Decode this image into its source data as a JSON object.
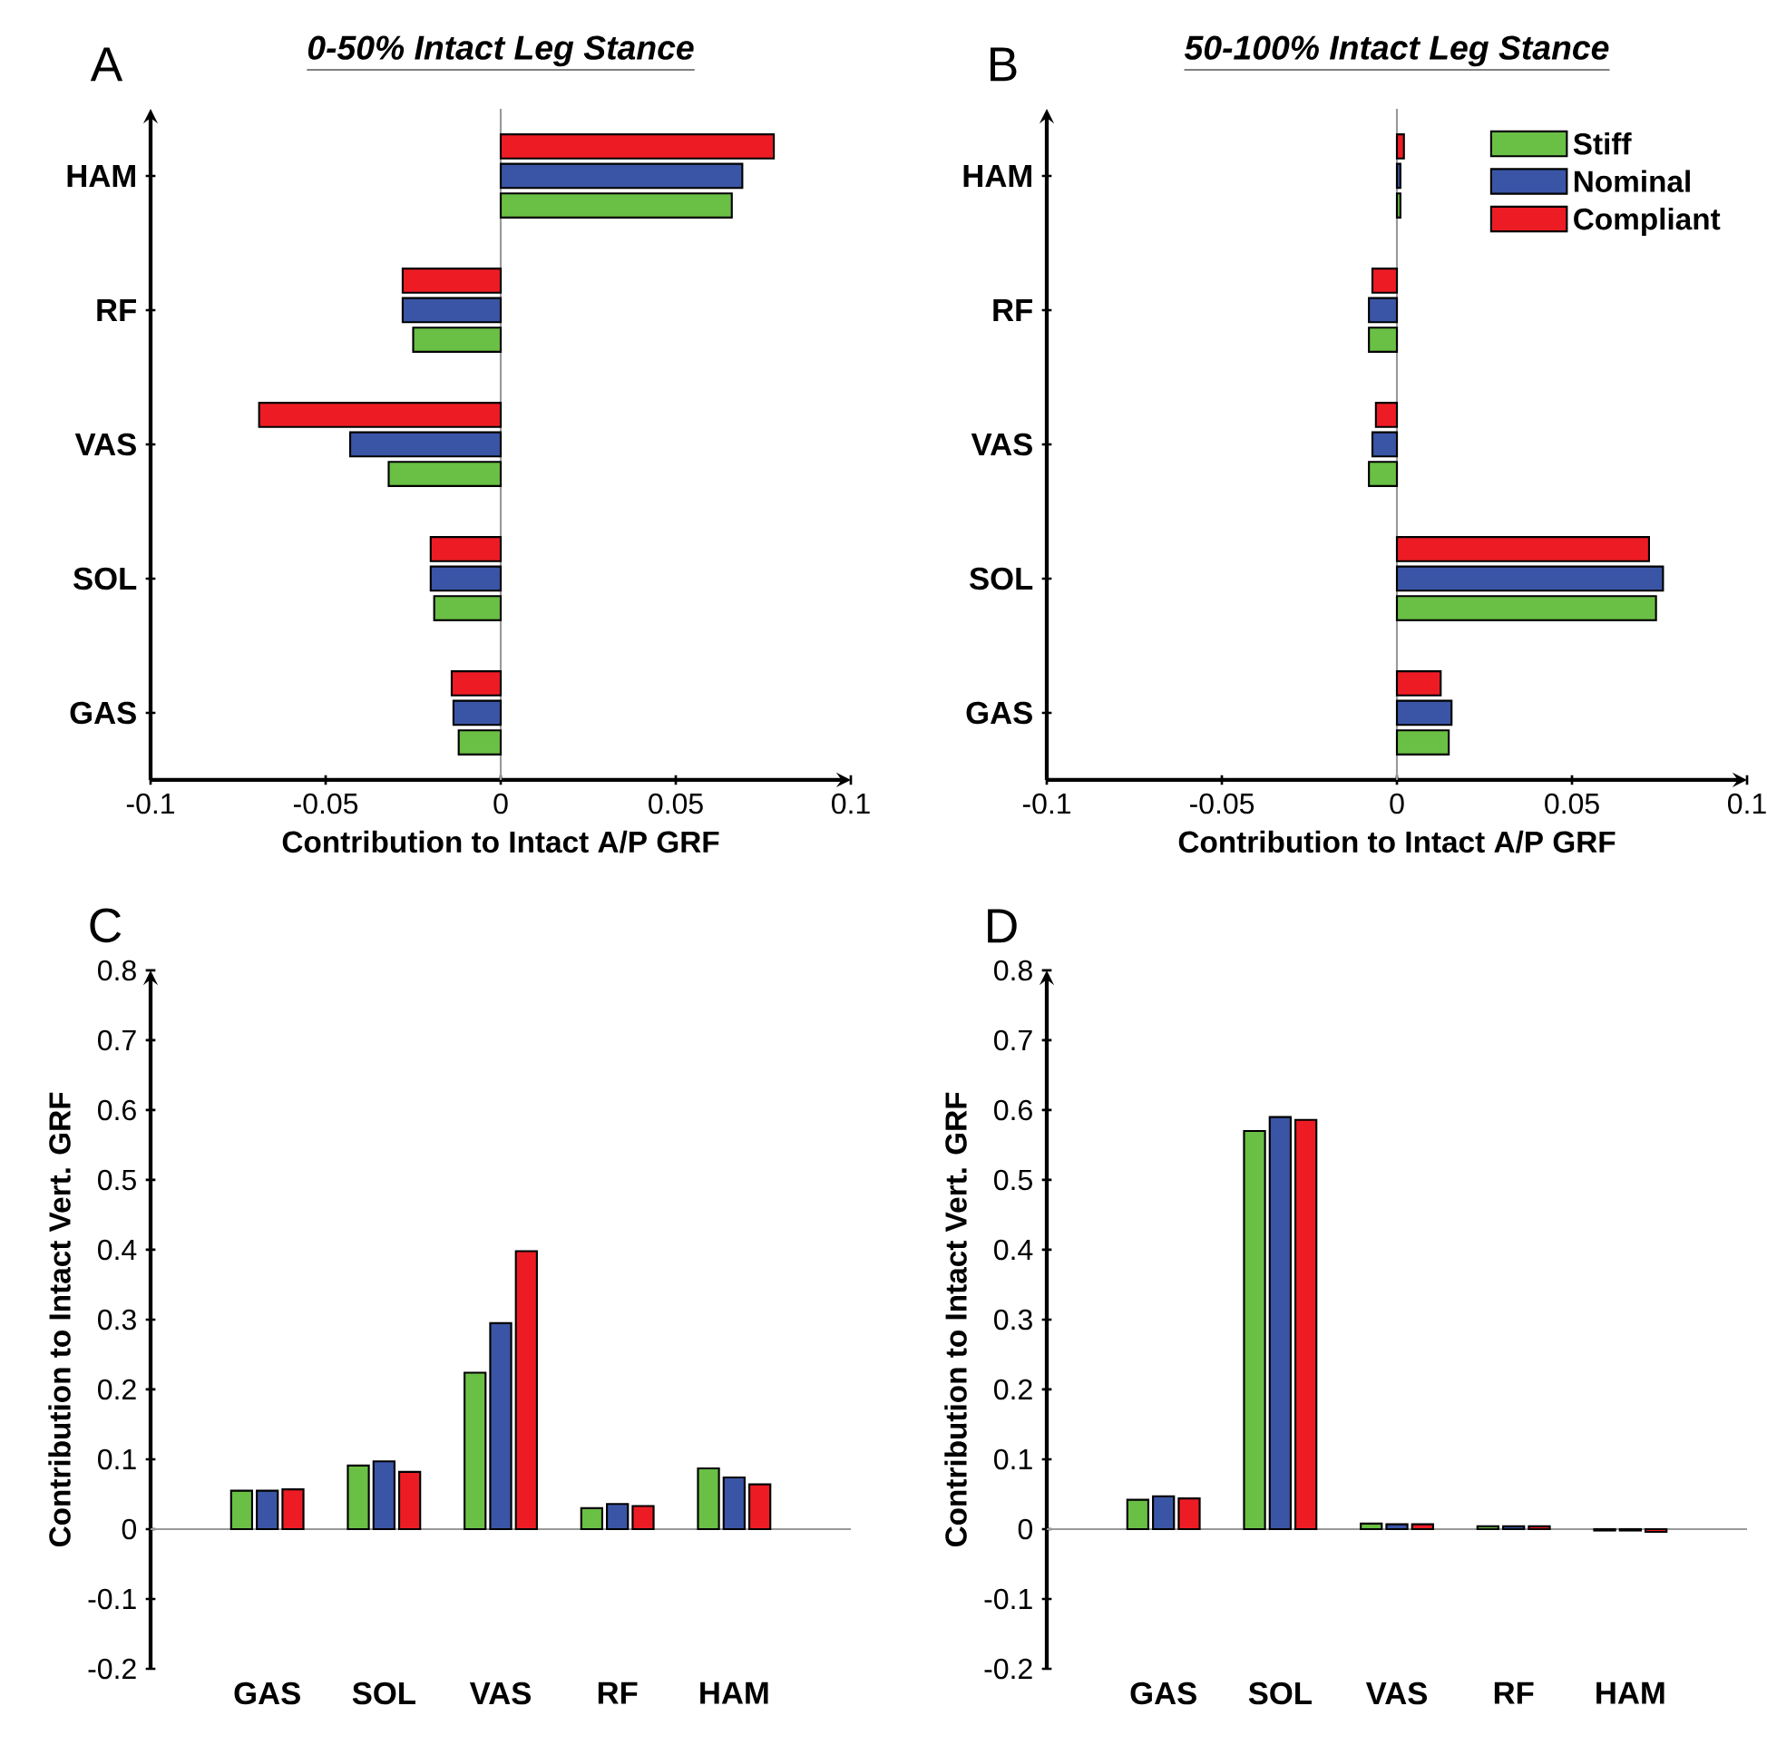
{
  "chart_data": [
    {
      "type": "bar",
      "orientation": "horizontal",
      "title": "0-50% Intact Leg Stance",
      "xlabel": "Contribution to Intact A/P GRF",
      "annotations": [
        "A"
      ],
      "categories": [
        "HAM",
        "RF",
        "VAS",
        "SOL",
        "GAS"
      ],
      "series": [
        {
          "color": "#6abf45",
          "values": [
            0.066,
            -0.025,
            -0.032,
            -0.019,
            -0.012
          ]
        },
        {
          "color": "#3a55a5",
          "values": [
            0.069,
            -0.028,
            -0.043,
            -0.02,
            -0.0135
          ]
        },
        {
          "color": "#ed1c24",
          "values": [
            0.078,
            -0.028,
            -0.069,
            -0.02,
            -0.014
          ]
        }
      ],
      "xlim": [
        -0.1,
        0.1
      ],
      "xticks": [
        -0.1,
        -0.05,
        0,
        0.05,
        0.1
      ],
      "ref_lines": [
        {
          "axis": "x",
          "value": 0,
          "color": "#999999"
        }
      ],
      "legend": false
    },
    {
      "type": "bar",
      "orientation": "horizontal",
      "title": "50-100% Intact Leg Stance",
      "xlabel": "Contribution to Intact A/P GRF",
      "annotations": [
        "B"
      ],
      "categories": [
        "HAM",
        "RF",
        "VAS",
        "SOL",
        "GAS"
      ],
      "series": [
        {
          "name": "Stiff",
          "color": "#6abf45",
          "values": [
            0.001,
            -0.008,
            -0.008,
            0.074,
            0.0148
          ]
        },
        {
          "name": "Nominal",
          "color": "#3a55a5",
          "values": [
            0.001,
            -0.008,
            -0.007,
            0.076,
            0.0156
          ]
        },
        {
          "name": "Compliant",
          "color": "#ed1c24",
          "values": [
            0.002,
            -0.007,
            -0.006,
            0.072,
            0.0125
          ]
        }
      ],
      "xlim": [
        -0.1,
        0.1
      ],
      "xticks": [
        -0.1,
        -0.05,
        0,
        0.05,
        0.1
      ],
      "ref_lines": [
        {
          "axis": "x",
          "value": 0,
          "color": "#999999"
        }
      ],
      "legend": "top right"
    },
    {
      "type": "bar",
      "ylabel": "Contribution to Intact Vert. GRF",
      "annotations": [
        "C"
      ],
      "categories": [
        "GAS",
        "SOL",
        "VAS",
        "RF",
        "HAM"
      ],
      "series": [
        {
          "color": "#6abf45",
          "values": [
            0.055,
            0.091,
            0.224,
            0.03,
            0.087
          ]
        },
        {
          "color": "#3a55a5",
          "values": [
            0.055,
            0.097,
            0.295,
            0.036,
            0.074
          ]
        },
        {
          "color": "#ed1c24",
          "values": [
            0.057,
            0.082,
            0.398,
            0.033,
            0.064
          ]
        }
      ],
      "ylim": [
        -0.2,
        0.8
      ],
      "yticks": [
        -0.2,
        -0.1,
        0,
        0.1,
        0.2,
        0.3,
        0.4,
        0.5,
        0.6,
        0.7,
        0.8
      ],
      "ref_lines": [
        {
          "axis": "y",
          "value": 0,
          "color": "#999999"
        }
      ],
      "legend": false
    },
    {
      "type": "bar",
      "ylabel": "Contribution to Intact Vert. GRF",
      "annotations": [
        "D"
      ],
      "categories": [
        "GAS",
        "SOL",
        "VAS",
        "RF",
        "HAM"
      ],
      "series": [
        {
          "color": "#6abf45",
          "values": [
            0.042,
            0.57,
            0.008,
            0.004,
            -0.002
          ]
        },
        {
          "color": "#3a55a5",
          "values": [
            0.047,
            0.59,
            0.007,
            0.004,
            -0.002
          ]
        },
        {
          "color": "#ed1c24",
          "values": [
            0.044,
            0.586,
            0.007,
            0.004,
            -0.004
          ]
        }
      ],
      "ylim": [
        -0.2,
        0.8
      ],
      "yticks": [
        -0.2,
        -0.1,
        0,
        0.1,
        0.2,
        0.3,
        0.4,
        0.5,
        0.6,
        0.7,
        0.8
      ],
      "ref_lines": [
        {
          "axis": "y",
          "value": 0,
          "color": "#999999"
        }
      ],
      "legend": false
    }
  ]
}
